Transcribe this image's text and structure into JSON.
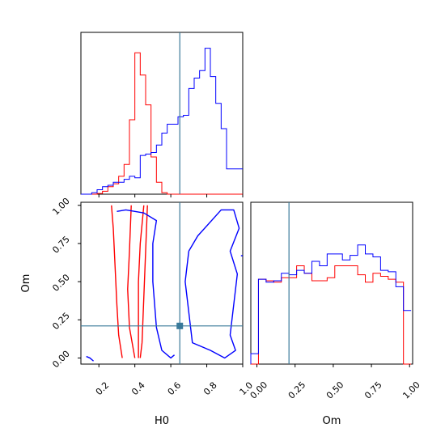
{
  "chart_data": {
    "type": "corner",
    "parameters": [
      "H0",
      "Om"
    ],
    "truths": {
      "H0": 0.65,
      "Om": 0.21
    },
    "colors": {
      "red": "#ff0000",
      "blue": "#0000ff",
      "truth": "#3a7a9a"
    },
    "axes": {
      "H0": {
        "range": [
          0.1,
          1.0
        ],
        "ticks": [
          "0.2",
          "0.4",
          "0.6",
          "0.8",
          "1.0"
        ],
        "tick_values": [
          0.2,
          0.4,
          0.6,
          0.8,
          1.0
        ]
      },
      "Om": {
        "range": [
          -0.04,
          1.02
        ],
        "ticks": [
          "0.00",
          "0.25",
          "0.50",
          "0.75",
          "1.00"
        ],
        "tick_values": [
          0.0,
          0.25,
          0.5,
          0.75,
          1.0
        ]
      }
    },
    "hist_H0": {
      "bins": [
        0.1,
        0.13,
        0.16,
        0.19,
        0.22,
        0.25,
        0.28,
        0.31,
        0.34,
        0.37,
        0.4,
        0.43,
        0.46,
        0.49,
        0.52,
        0.55,
        0.58,
        0.61,
        0.64,
        0.67,
        0.7,
        0.73,
        0.76,
        0.79,
        0.82,
        0.85,
        0.88,
        0.91,
        0.94,
        0.97,
        1.0
      ],
      "series": [
        {
          "color": "red",
          "counts": [
            0,
            0,
            0,
            0.005,
            0.02,
            0.05,
            0.07,
            0.12,
            0.2,
            0.5,
            0.95,
            0.8,
            0.6,
            0.25,
            0.08,
            0.01,
            0,
            0,
            0,
            0,
            0,
            0,
            0,
            0,
            0,
            0,
            0,
            0,
            0,
            0
          ]
        },
        {
          "color": "blue",
          "counts": [
            0,
            0,
            0.01,
            0.03,
            0.05,
            0.06,
            0.08,
            0.08,
            0.1,
            0.12,
            0.11,
            0.26,
            0.27,
            0.28,
            0.33,
            0.41,
            0.47,
            0.47,
            0.52,
            0.53,
            0.71,
            0.78,
            0.83,
            0.98,
            0.79,
            0.61,
            0.44,
            0.17,
            0.17,
            0.17
          ]
        }
      ]
    },
    "hist_Om": {
      "bins": [
        -0.04,
        0.01,
        0.06,
        0.11,
        0.16,
        0.21,
        0.26,
        0.31,
        0.36,
        0.41,
        0.46,
        0.51,
        0.56,
        0.61,
        0.66,
        0.71,
        0.76,
        0.81,
        0.86,
        0.91,
        0.96,
        1.01
      ],
      "series": [
        {
          "color": "red",
          "counts": [
            0.0,
            0.57,
            0.56,
            0.55,
            0.58,
            0.58,
            0.66,
            0.61,
            0.56,
            0.56,
            0.58,
            0.66,
            0.66,
            0.66,
            0.6,
            0.55,
            0.61,
            0.59,
            0.57,
            0.55,
            0.0
          ]
        },
        {
          "color": "blue",
          "counts": [
            0.07,
            0.57,
            0.55,
            0.56,
            0.61,
            0.6,
            0.63,
            0.61,
            0.69,
            0.66,
            0.74,
            0.74,
            0.7,
            0.73,
            0.8,
            0.74,
            0.72,
            0.63,
            0.62,
            0.52,
            0.36
          ]
        }
      ]
    },
    "scatter_levels": {
      "red": [
        [
          [
            0.27,
            1.0
          ],
          [
            0.28,
            0.85
          ],
          [
            0.29,
            0.6
          ],
          [
            0.3,
            0.35
          ],
          [
            0.31,
            0.15
          ],
          [
            0.33,
            0.0
          ]
        ],
        [
          [
            0.38,
            1.0
          ],
          [
            0.37,
            0.7
          ],
          [
            0.36,
            0.45
          ],
          [
            0.37,
            0.2
          ],
          [
            0.4,
            0.0
          ]
        ],
        [
          [
            0.45,
            1.0
          ],
          [
            0.43,
            0.75
          ],
          [
            0.42,
            0.5
          ],
          [
            0.42,
            0.25
          ],
          [
            0.42,
            0.0
          ]
        ],
        [
          [
            0.47,
            1.0
          ],
          [
            0.46,
            0.7
          ],
          [
            0.45,
            0.4
          ],
          [
            0.44,
            0.1
          ],
          [
            0.43,
            0.0
          ]
        ]
      ],
      "blue": [
        [
          [
            0.13,
            0.01
          ],
          [
            0.15,
            0.0
          ],
          [
            0.17,
            -0.02
          ]
        ],
        [
          [
            0.3,
            0.96
          ],
          [
            0.35,
            0.97
          ],
          [
            0.45,
            0.95
          ],
          [
            0.52,
            0.9
          ],
          [
            0.5,
            0.75
          ],
          [
            0.5,
            0.5
          ],
          [
            0.52,
            0.2
          ],
          [
            0.55,
            0.05
          ],
          [
            0.6,
            0.0
          ],
          [
            0.62,
            0.02
          ]
        ],
        [
          [
            0.7,
            0.7
          ],
          [
            0.75,
            0.8
          ],
          [
            0.88,
            0.97
          ],
          [
            0.95,
            0.97
          ],
          [
            0.98,
            0.85
          ],
          [
            0.93,
            0.7
          ],
          [
            0.97,
            0.55
          ],
          [
            0.95,
            0.35
          ],
          [
            0.93,
            0.15
          ],
          [
            0.96,
            0.05
          ],
          [
            0.9,
            0.0
          ],
          [
            0.82,
            0.05
          ],
          [
            0.72,
            0.1
          ],
          [
            0.7,
            0.3
          ],
          [
            0.68,
            0.5
          ],
          [
            0.7,
            0.7
          ]
        ],
        [
          [
            0.99,
            0.67
          ],
          [
            1.0,
            0.67
          ]
        ]
      ]
    },
    "labels": {
      "x_H0": "H0",
      "x_Om": "Om",
      "y_Om": "Om"
    }
  }
}
